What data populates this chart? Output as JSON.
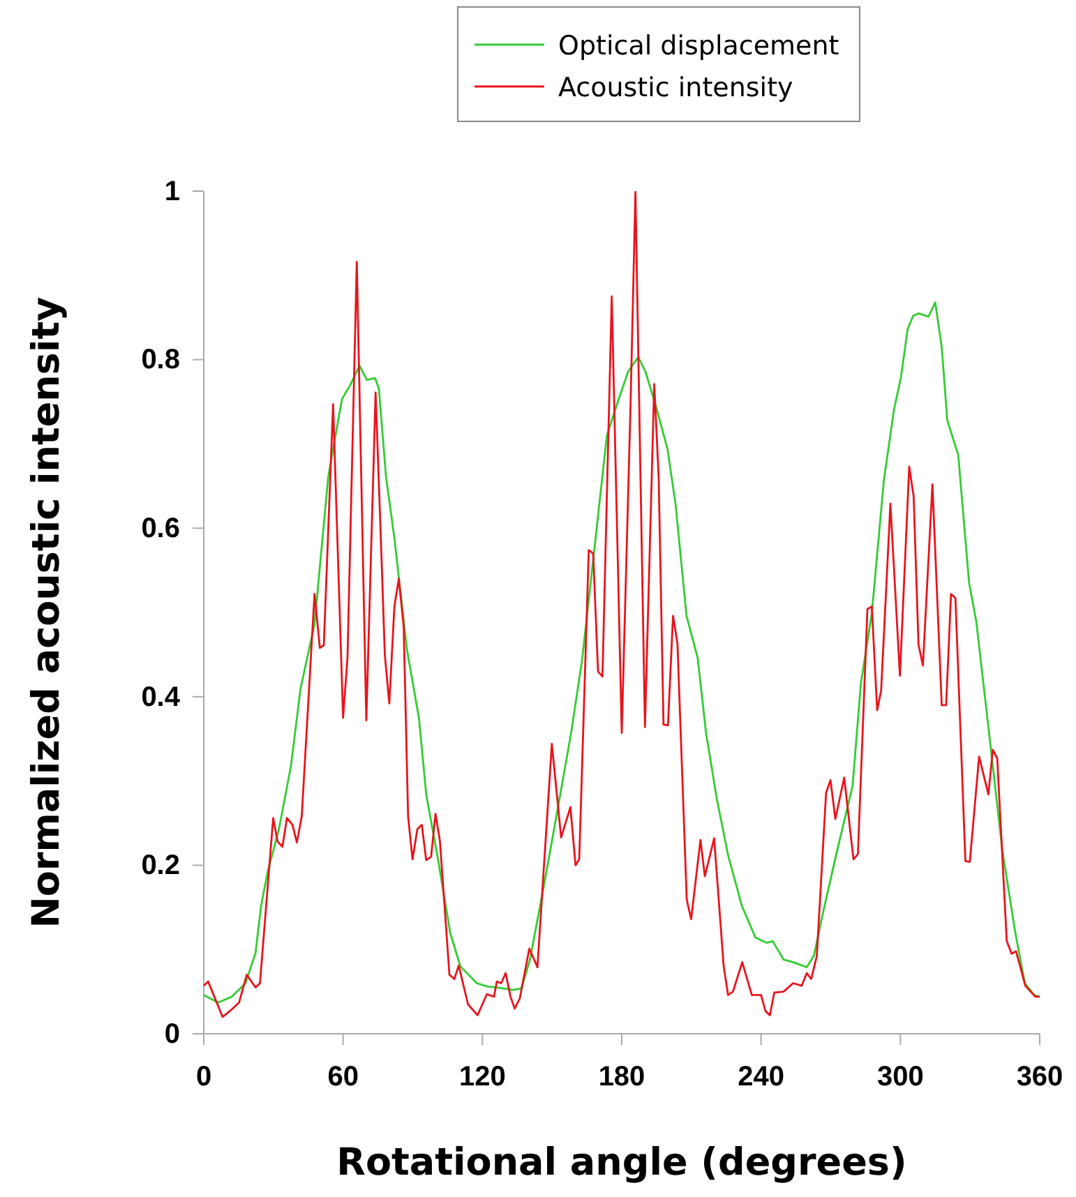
{
  "chart_data": {
    "type": "line",
    "xlabel": "Rotational angle (degrees)",
    "ylabel": "Normalized acoustic intensity",
    "xlim": [
      0,
      360
    ],
    "ylim": [
      0,
      1
    ],
    "xticks": [
      0,
      60,
      120,
      180,
      240,
      300,
      360
    ],
    "yticks": [
      0,
      0.2,
      0.4,
      0.6,
      0.8,
      {
        "value": 1,
        "label": "1"
      }
    ],
    "grid": false,
    "legend": "top",
    "marker": "none",
    "line_style": "solid",
    "series": [
      {
        "name": "Optical displacement",
        "color": "#33cc33",
        "x": [
          0,
          6.2,
          12.1,
          18,
          22.3,
          24.7,
          27.5,
          32.3,
          37.5,
          41.7,
          47.7,
          53.6,
          59.5,
          63.1,
          67.1,
          70.2,
          73.8,
          75.4,
          78.5,
          82.1,
          87.5,
          92.7,
          95.8,
          101,
          106.2,
          110.5,
          117.6,
          122.4,
          126.2,
          133.3,
          136.8,
          140.4,
          146.3,
          152.3,
          158.2,
          162.9,
          167.7,
          173.6,
          178.3,
          182.8,
          187.1,
          190.2,
          194.9,
          199.7,
          203.2,
          207.9,
          212.7,
          216.3,
          221,
          225.8,
          231.7,
          237.6,
          242.4,
          245,
          249.7,
          253.8,
          259.7,
          262.8,
          266.3,
          272.3,
          279.4,
          283,
          287.7,
          292.9,
          297.2,
          300.3,
          303.1,
          305.5,
          307.8,
          312.1,
          315,
          317.8,
          320.2,
          324.9,
          329.6,
          332.7,
          338.6,
          343.9,
          349.3,
          353.6,
          357.6,
          360
        ],
        "values": [
          0.046,
          0.037,
          0.044,
          0.06,
          0.096,
          0.152,
          0.192,
          0.242,
          0.317,
          0.41,
          0.486,
          0.661,
          0.753,
          0.77,
          0.793,
          0.776,
          0.778,
          0.766,
          0.661,
          0.588,
          0.456,
          0.374,
          0.284,
          0.205,
          0.119,
          0.08,
          0.06,
          0.056,
          0.055,
          0.052,
          0.054,
          0.087,
          0.173,
          0.265,
          0.357,
          0.443,
          0.562,
          0.71,
          0.75,
          0.786,
          0.803,
          0.786,
          0.743,
          0.694,
          0.628,
          0.496,
          0.446,
          0.357,
          0.278,
          0.212,
          0.152,
          0.114,
          0.108,
          0.11,
          0.088,
          0.085,
          0.079,
          0.093,
          0.139,
          0.212,
          0.294,
          0.416,
          0.499,
          0.657,
          0.74,
          0.78,
          0.836,
          0.852,
          0.855,
          0.851,
          0.868,
          0.815,
          0.728,
          0.687,
          0.535,
          0.489,
          0.347,
          0.218,
          0.123,
          0.06,
          0.046,
          0.044
        ]
      },
      {
        "name": "Acoustic intensity",
        "color": "#e8141c",
        "x": [
          0,
          1.9,
          8.1,
          12.1,
          15.2,
          18.5,
          22.3,
          24.2,
          29.9,
          31.8,
          33.9,
          35.8,
          38.2,
          40.1,
          42.2,
          47.7,
          50,
          51.7,
          55.7,
          60,
          61.9,
          65.9,
          70,
          74,
          75.9,
          78,
          79.9,
          82.1,
          84,
          86.1,
          88,
          89.9,
          92,
          93.9,
          95.8,
          97.9,
          99.8,
          101.7,
          105.8,
          107.9,
          109.8,
          113.8,
          117.9,
          120,
          121.9,
          125,
          126.2,
          128.1,
          130,
          132.1,
          133.9,
          136.1,
          140.2,
          143.7,
          149.9,
          153.9,
          157.9,
          160.1,
          161.7,
          165.8,
          167.7,
          169.8,
          171.7,
          175.7,
          180,
          183.8,
          185.9,
          190,
          194,
          195.9,
          198,
          199.9,
          202.1,
          204,
          208,
          209.9,
          213.9,
          215.8,
          219.8,
          223.9,
          225.8,
          227.9,
          231.9,
          236,
          240,
          241.9,
          243.8,
          245.7,
          249.7,
          253.8,
          257.5,
          259.7,
          261.6,
          264,
          268,
          269.9,
          272,
          275.8,
          279.8,
          281.7,
          285.8,
          287.7,
          290,
          291.7,
          295.7,
          299.8,
          303.8,
          305.7,
          307.8,
          309.7,
          313.8,
          317.8,
          319.7,
          321.8,
          323.7,
          328,
          329.9,
          333.9,
          337.9,
          339.8,
          341.7,
          345.8,
          347.9,
          349.8,
          353.8,
          358.1,
          360
        ],
        "values": [
          0.057,
          0.062,
          0.02,
          0.029,
          0.037,
          0.07,
          0.055,
          0.06,
          0.256,
          0.228,
          0.222,
          0.256,
          0.248,
          0.227,
          0.258,
          0.522,
          0.458,
          0.461,
          0.747,
          0.375,
          0.446,
          0.916,
          0.372,
          0.761,
          0.616,
          0.449,
          0.392,
          0.507,
          0.54,
          0.483,
          0.258,
          0.207,
          0.243,
          0.248,
          0.206,
          0.21,
          0.261,
          0.229,
          0.07,
          0.065,
          0.081,
          0.035,
          0.022,
          0.035,
          0.047,
          0.044,
          0.062,
          0.06,
          0.072,
          0.044,
          0.03,
          0.042,
          0.101,
          0.079,
          0.344,
          0.233,
          0.269,
          0.2,
          0.207,
          0.574,
          0.57,
          0.43,
          0.424,
          0.875,
          0.357,
          0.747,
          0.999,
          0.364,
          0.771,
          0.661,
          0.367,
          0.366,
          0.496,
          0.463,
          0.159,
          0.136,
          0.23,
          0.187,
          0.232,
          0.08,
          0.046,
          0.05,
          0.085,
          0.046,
          0.046,
          0.027,
          0.022,
          0.049,
          0.05,
          0.06,
          0.057,
          0.072,
          0.065,
          0.092,
          0.286,
          0.301,
          0.255,
          0.304,
          0.207,
          0.213,
          0.504,
          0.507,
          0.384,
          0.407,
          0.629,
          0.425,
          0.673,
          0.638,
          0.462,
          0.437,
          0.652,
          0.39,
          0.39,
          0.522,
          0.517,
          0.205,
          0.204,
          0.329,
          0.284,
          0.337,
          0.327,
          0.11,
          0.095,
          0.098,
          0.057,
          0.044,
          0.044
        ]
      }
    ]
  }
}
